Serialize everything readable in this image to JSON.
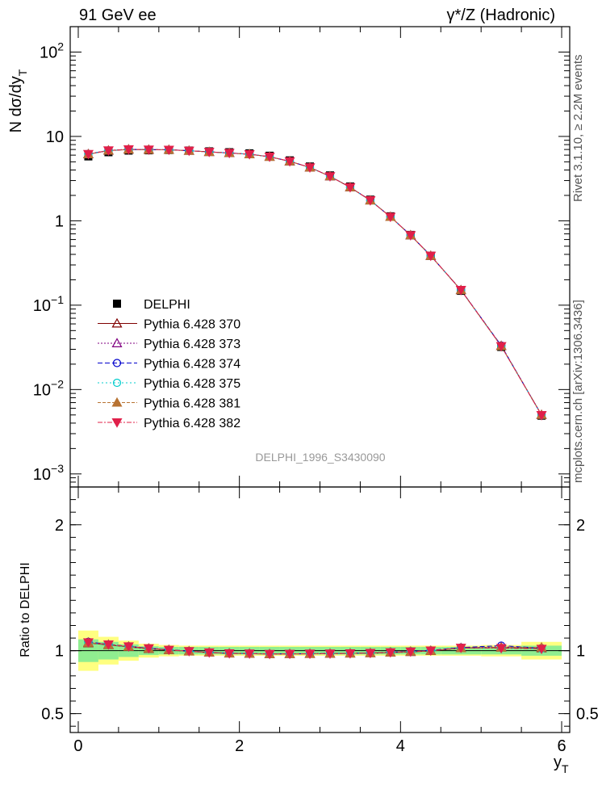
{
  "header": {
    "left_title": "91 GeV ee",
    "right_title": "γ*/Z (Hadronic)"
  },
  "side_text": {
    "rivet": "Rivet 3.1.10, ≥ 2.2M events",
    "mcplots": "mcplots.cern.ch [arXiv:1306.3436]"
  },
  "watermark": "DELPHI_1996_S3430090",
  "colors": {
    "data": "#000000",
    "band_inner": "#90ee90",
    "band_outer": "#ffff80"
  },
  "chart_data": [
    {
      "type": "line",
      "ylabel": "N dσ/dy",
      "ylabel_sub": "T",
      "yscale": "log",
      "xlim": [
        -0.1,
        6.1
      ],
      "ylim": [
        0.0007,
        200
      ],
      "x_ticks": [
        "0",
        "2",
        "4",
        "6"
      ],
      "y_ticks": [
        {
          "base": "10",
          "exp": "2",
          "value": 100
        },
        {
          "base": "10",
          "exp": "",
          "value": 10
        },
        {
          "base": "1",
          "exp": "",
          "value": 1
        },
        {
          "base": "10",
          "exp": "−1",
          "value": 0.1
        },
        {
          "base": "10",
          "exp": "−2",
          "value": 0.01
        },
        {
          "base": "10",
          "exp": "−3",
          "value": 0.001
        }
      ],
      "x": [
        0.125,
        0.375,
        0.625,
        0.875,
        1.125,
        1.375,
        1.625,
        1.875,
        2.125,
        2.375,
        2.625,
        2.875,
        3.125,
        3.375,
        3.625,
        3.875,
        4.125,
        4.375,
        4.75,
        5.25,
        5.75
      ],
      "data_series": {
        "name": "DELPHI",
        "values": [
          5.8,
          6.5,
          6.8,
          6.85,
          6.9,
          6.8,
          6.65,
          6.5,
          6.3,
          5.9,
          5.2,
          4.4,
          3.45,
          2.55,
          1.78,
          1.13,
          0.68,
          0.385,
          0.148,
          0.032,
          0.0049
        ]
      },
      "mc_series": [
        {
          "name": "Pythia 6.428 370",
          "color": "#800000",
          "marker": "triangle-open",
          "dash": "",
          "ratio": [
            1.06,
            1.045,
            1.03,
            1.015,
            1.005,
            0.995,
            0.985,
            0.978,
            0.976,
            0.973,
            0.974,
            0.975,
            0.976,
            0.978,
            0.98,
            0.985,
            0.99,
            0.998,
            1.02,
            1.025,
            1.02
          ]
        },
        {
          "name": "Pythia 6.428 373",
          "color": "#800080",
          "marker": "triangle-open",
          "dash": "2,2",
          "ratio": [
            1.065,
            1.048,
            1.033,
            1.018,
            1.007,
            0.996,
            0.986,
            0.979,
            0.977,
            0.974,
            0.975,
            0.976,
            0.977,
            0.979,
            0.982,
            0.987,
            0.993,
            1.0,
            1.022,
            1.03,
            1.025
          ]
        },
        {
          "name": "Pythia 6.428 374",
          "color": "#0000cc",
          "marker": "circle-open",
          "dash": "6,3",
          "ratio": [
            1.07,
            1.05,
            1.035,
            1.02,
            1.008,
            0.997,
            0.987,
            0.98,
            0.977,
            0.974,
            0.975,
            0.976,
            0.977,
            0.979,
            0.982,
            0.988,
            0.995,
            1.003,
            1.025,
            1.04,
            1.02
          ]
        },
        {
          "name": "Pythia 6.428 375",
          "color": "#00cccc",
          "marker": "circle-open",
          "dash": "2,3",
          "ratio": [
            1.062,
            1.046,
            1.031,
            1.016,
            1.006,
            0.995,
            0.985,
            0.978,
            0.976,
            0.973,
            0.974,
            0.975,
            0.976,
            0.978,
            0.981,
            0.986,
            0.992,
            1.0,
            1.02,
            1.02,
            1.015
          ]
        },
        {
          "name": "Pythia 6.428 381",
          "color": "#b87333",
          "marker": "triangle-filled",
          "dash": "4,2",
          "ratio": [
            1.063,
            1.047,
            1.032,
            1.017,
            1.006,
            0.996,
            0.986,
            0.979,
            0.976,
            0.973,
            0.974,
            0.975,
            0.976,
            0.978,
            0.981,
            0.986,
            0.992,
            0.999,
            1.02,
            1.025,
            1.025
          ]
        },
        {
          "name": "Pythia 6.428 382",
          "color": "#e0204a",
          "marker": "triangle-down-filled",
          "dash": "6,2,2,2",
          "ratio": [
            1.066,
            1.049,
            1.034,
            1.019,
            1.007,
            0.996,
            0.986,
            0.979,
            0.977,
            0.974,
            0.975,
            0.976,
            0.977,
            0.979,
            0.982,
            0.987,
            0.993,
            1.001,
            1.023,
            1.02,
            1.015
          ]
        }
      ]
    },
    {
      "type": "line",
      "ylabel": "Ratio to DELPHI",
      "xlabel": "y",
      "xlabel_sub": "T",
      "ylim": [
        0.35,
        2.3
      ],
      "xlim": [
        -0.1,
        6.1
      ],
      "x_ticks": [
        "0",
        "2",
        "4",
        "6"
      ],
      "y_ticks": [
        "2",
        "1",
        "0.5"
      ],
      "bins": [
        [
          0.0,
          0.25
        ],
        [
          0.25,
          0.5
        ],
        [
          0.5,
          0.75
        ],
        [
          0.75,
          1.0
        ],
        [
          1.0,
          1.25
        ],
        [
          1.25,
          1.5
        ],
        [
          1.5,
          1.75
        ],
        [
          1.75,
          2.0
        ],
        [
          2.0,
          2.25
        ],
        [
          2.25,
          2.5
        ],
        [
          2.5,
          2.75
        ],
        [
          2.75,
          3.0
        ],
        [
          3.0,
          3.25
        ],
        [
          3.25,
          3.5
        ],
        [
          3.5,
          3.75
        ],
        [
          3.75,
          4.0
        ],
        [
          4.0,
          4.25
        ],
        [
          4.25,
          4.5
        ],
        [
          4.5,
          5.0
        ],
        [
          5.0,
          5.5
        ],
        [
          5.5,
          6.0
        ]
      ],
      "band_inner": [
        0.09,
        0.07,
        0.05,
        0.035,
        0.03,
        0.03,
        0.03,
        0.03,
        0.03,
        0.03,
        0.03,
        0.03,
        0.03,
        0.03,
        0.03,
        0.03,
        0.03,
        0.03,
        0.03,
        0.03,
        0.04
      ],
      "band_outer": [
        0.16,
        0.11,
        0.08,
        0.055,
        0.045,
        0.04,
        0.04,
        0.04,
        0.04,
        0.04,
        0.04,
        0.04,
        0.04,
        0.04,
        0.04,
        0.04,
        0.04,
        0.04,
        0.04,
        0.045,
        0.07
      ]
    }
  ]
}
